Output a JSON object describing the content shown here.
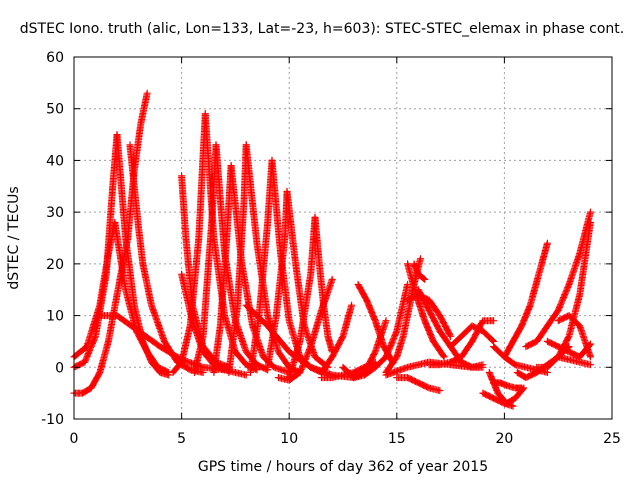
{
  "chart_data": {
    "type": "scatter",
    "title": "dSTEC Iono. truth (alic, Lon=133, Lat=-23, h=603): STEC-STEC_elemax in phase cont.",
    "xlabel": "GPS time / hours of day 362 of year 2015",
    "ylabel": "dSTEC  / TECUs",
    "xlim": [
      0,
      25
    ],
    "ylim": [
      -10,
      60
    ],
    "xticks": [
      "0",
      "5",
      "10",
      "15",
      "20",
      "25"
    ],
    "yticks": [
      "-10",
      "0",
      "10",
      "20",
      "30",
      "40",
      "50",
      "60"
    ],
    "grid": true,
    "marker": "plus",
    "color": "#ff0000",
    "series": [
      {
        "x": [
          0,
          0.5,
          1.0,
          1.5,
          1.8,
          2.0
        ],
        "y": [
          0,
          1,
          6,
          18,
          35,
          45
        ]
      },
      {
        "x": [
          2.0,
          2.4,
          2.8,
          3.2,
          3.6,
          4.0,
          4.4
        ],
        "y": [
          45,
          25,
          12,
          5,
          1,
          -1,
          -1.5
        ]
      },
      {
        "x": [
          0,
          0.6,
          1.2,
          1.6,
          1.9
        ],
        "y": [
          2,
          4,
          12,
          22,
          28
        ]
      },
      {
        "x": [
          1.9,
          2.4,
          2.9,
          3.4,
          3.9,
          4.4
        ],
        "y": [
          28,
          15,
          7,
          3,
          0,
          -1
        ]
      },
      {
        "x": [
          0,
          0.4,
          0.8,
          1.2,
          1.6,
          2.0,
          2.5
        ],
        "y": [
          -5,
          -5,
          -4,
          -1,
          5,
          14,
          25
        ]
      },
      {
        "x": [
          2.5,
          2.8,
          3.1,
          3.4
        ],
        "y": [
          25,
          38,
          47,
          53
        ]
      },
      {
        "x": [
          2.6,
          2.8,
          3.0,
          3.2
        ],
        "y": [
          43,
          35,
          27,
          20
        ]
      },
      {
        "x": [
          3.2,
          3.6,
          4.2,
          4.8,
          5.4,
          6.0
        ],
        "y": [
          20,
          12,
          5,
          1,
          -0.5,
          -1
        ]
      },
      {
        "x": [
          1.2,
          2.0,
          3.0,
          4.0,
          5.0,
          6.0,
          7.0
        ],
        "y": [
          10,
          10,
          7,
          4,
          1.5,
          0,
          -0.5
        ]
      },
      {
        "x": [
          5.0,
          5.2,
          5.5,
          6.0,
          6.6,
          7.2
        ],
        "y": [
          37,
          25,
          12,
          4,
          1,
          0
        ]
      },
      {
        "x": [
          5.0,
          5.5,
          6.0,
          6.5,
          7.0,
          7.5,
          8.0
        ],
        "y": [
          18,
          9,
          3,
          0.5,
          -0.5,
          -1,
          -1.5
        ]
      },
      {
        "x": [
          4.6,
          5.0,
          5.4,
          5.8,
          6.1
        ],
        "y": [
          -1,
          1,
          8,
          25,
          49
        ]
      },
      {
        "x": [
          6.1,
          6.5,
          7.0,
          7.5,
          8.0,
          8.5
        ],
        "y": [
          49,
          25,
          10,
          3,
          0.5,
          -0.5
        ]
      },
      {
        "x": [
          5.6,
          6.0,
          6.4,
          6.6
        ],
        "y": [
          -1,
          6,
          28,
          43
        ]
      },
      {
        "x": [
          6.6,
          7.0,
          7.5,
          8.0,
          8.5,
          9.0
        ],
        "y": [
          43,
          22,
          9,
          3,
          0.5,
          -0.5
        ]
      },
      {
        "x": [
          6.5,
          6.8,
          7.1,
          7.3
        ],
        "y": [
          -1,
          8,
          25,
          39
        ]
      },
      {
        "x": [
          7.3,
          7.8,
          8.3,
          8.8,
          9.3,
          10.0
        ],
        "y": [
          39,
          20,
          8,
          2,
          0,
          -1
        ]
      },
      {
        "x": [
          7.2,
          7.6,
          7.9,
          8.0
        ],
        "y": [
          -1,
          12,
          32,
          43
        ]
      },
      {
        "x": [
          8.0,
          8.5,
          9.0,
          9.5,
          10.0,
          10.5
        ],
        "y": [
          43,
          24,
          10,
          3,
          0,
          -1
        ]
      },
      {
        "x": [
          8.2,
          8.6,
          9.0,
          9.2
        ],
        "y": [
          -1,
          10,
          28,
          40
        ]
      },
      {
        "x": [
          9.2,
          9.6,
          10.0,
          10.5,
          11.0
        ],
        "y": [
          40,
          22,
          9,
          2,
          0
        ]
      },
      {
        "x": [
          9.0,
          9.4,
          9.8,
          9.9
        ],
        "y": [
          0,
          10,
          25,
          34
        ]
      },
      {
        "x": [
          9.9,
          10.3,
          10.7,
          11.2,
          11.8
        ],
        "y": [
          34,
          20,
          8,
          2,
          0
        ]
      },
      {
        "x": [
          10.0,
          10.5,
          11.0,
          11.2
        ],
        "y": [
          -2,
          5,
          18,
          29
        ]
      },
      {
        "x": [
          11.2,
          11.4,
          11.6,
          11.8,
          12.0
        ],
        "y": [
          29,
          20,
          12,
          6,
          3
        ]
      },
      {
        "x": [
          8.0,
          9.0,
          10.0,
          11.0,
          12.0,
          13.0
        ],
        "y": [
          12,
          8,
          3,
          0,
          -1.5,
          -2
        ]
      },
      {
        "x": [
          9.5,
          10.0,
          10.5,
          11.0,
          11.5,
          12.0
        ],
        "y": [
          -2,
          -2.5,
          -1,
          4,
          11,
          17
        ]
      },
      {
        "x": [
          11.0,
          11.5,
          12.0,
          12.5,
          12.9
        ],
        "y": [
          0,
          -1,
          2,
          6,
          12
        ]
      },
      {
        "x": [
          11.5,
          12.0,
          12.5,
          13.0,
          13.5,
          14.0
        ],
        "y": [
          -2,
          -2,
          -1.5,
          -1,
          0,
          1
        ]
      },
      {
        "x": [
          12.5,
          13.0,
          13.5,
          14.0,
          14.5
        ],
        "y": [
          0,
          -2,
          -1,
          3,
          9
        ]
      },
      {
        "x": [
          13.0,
          13.5,
          14.0,
          14.5,
          15.0,
          15.5
        ],
        "y": [
          -2,
          -1.5,
          0,
          2,
          7,
          16
        ]
      },
      {
        "x": [
          13.2,
          13.6,
          14.0,
          14.4,
          14.8
        ],
        "y": [
          16,
          13,
          9,
          4,
          1
        ]
      },
      {
        "x": [
          14.5,
          15.0,
          15.3,
          15.6,
          15.8,
          16.1
        ],
        "y": [
          -1,
          2,
          6,
          12,
          16,
          21
        ]
      },
      {
        "x": [
          15.5,
          15.9,
          16.3,
          16.7,
          17.2
        ],
        "y": [
          20,
          14,
          9,
          5,
          2
        ]
      },
      {
        "x": [
          15.0,
          15.5,
          16.0,
          16.5,
          17.0
        ],
        "y": [
          -2,
          -2,
          -3,
          -4,
          -4.5
        ]
      },
      {
        "x": [
          15.5,
          16.0,
          16.5,
          17.0,
          17.5
        ],
        "y": [
          13,
          14,
          13,
          10,
          6
        ]
      },
      {
        "x": [
          16.0,
          16.5,
          17.0,
          17.5,
          18.0,
          18.5,
          19.0
        ],
        "y": [
          15,
          11,
          7,
          4,
          1,
          0,
          0
        ]
      },
      {
        "x": [
          14.5,
          15.5,
          16.5,
          17.5,
          18.5,
          19.0
        ],
        "y": [
          -1.5,
          0,
          1,
          0.5,
          0,
          0.5
        ]
      },
      {
        "x": [
          16.5,
          17.0,
          17.5,
          18.0,
          18.5,
          19.0,
          19.5
        ],
        "y": [
          0.5,
          0.5,
          1,
          2,
          5,
          9,
          9
        ]
      },
      {
        "x": [
          19.3,
          19.7,
          20.1,
          20.5,
          20.9
        ],
        "y": [
          -1,
          -5,
          -7,
          -6,
          -4
        ]
      },
      {
        "x": [
          19.5,
          19.8,
          20.1,
          20.5,
          20.8
        ],
        "y": [
          -3,
          -3,
          -3.5,
          -4,
          -4
        ]
      },
      {
        "x": [
          19.0,
          19.5,
          20.0,
          20.4
        ],
        "y": [
          -5,
          -6,
          -7,
          -7.5
        ]
      },
      {
        "x": [
          19.5,
          20.0,
          20.5,
          21.0,
          21.5,
          22.0
        ],
        "y": [
          4,
          2,
          0.5,
          0,
          -0.5,
          -1
        ]
      },
      {
        "x": [
          20.0,
          20.4,
          20.8,
          21.2,
          21.6,
          22.0
        ],
        "y": [
          2,
          5,
          8,
          12,
          18,
          24
        ]
      },
      {
        "x": [
          20.6,
          21.0,
          21.5,
          22.0,
          22.5,
          23.0
        ],
        "y": [
          -1,
          -2,
          -1,
          0.5,
          2,
          4
        ]
      },
      {
        "x": [
          21.0,
          21.5,
          22.0,
          22.5,
          23.0,
          23.5,
          24.0
        ],
        "y": [
          4,
          5,
          8,
          11,
          16,
          22,
          30
        ]
      },
      {
        "x": [
          21.5,
          22.0,
          22.5,
          23.0,
          23.5,
          24.0
        ],
        "y": [
          0,
          0,
          2,
          6,
          14,
          28
        ]
      },
      {
        "x": [
          22.0,
          22.5,
          23.0,
          23.5,
          24.0
        ],
        "y": [
          5,
          4,
          3,
          2,
          4.5
        ]
      },
      {
        "x": [
          22.5,
          23.0,
          23.5,
          24.0
        ],
        "y": [
          2,
          1.5,
          1,
          0.5
        ]
      },
      {
        "x": [
          22.5,
          23.0,
          23.5,
          24.0
        ],
        "y": [
          9,
          10,
          8,
          2
        ]
      },
      {
        "x": [
          15.8,
          16.0,
          16.3
        ],
        "y": [
          20,
          18,
          17
        ]
      },
      {
        "x": [
          17.5,
          18.0,
          18.5,
          19.0,
          19.5
        ],
        "y": [
          4,
          6,
          8,
          7,
          5
        ]
      }
    ]
  }
}
